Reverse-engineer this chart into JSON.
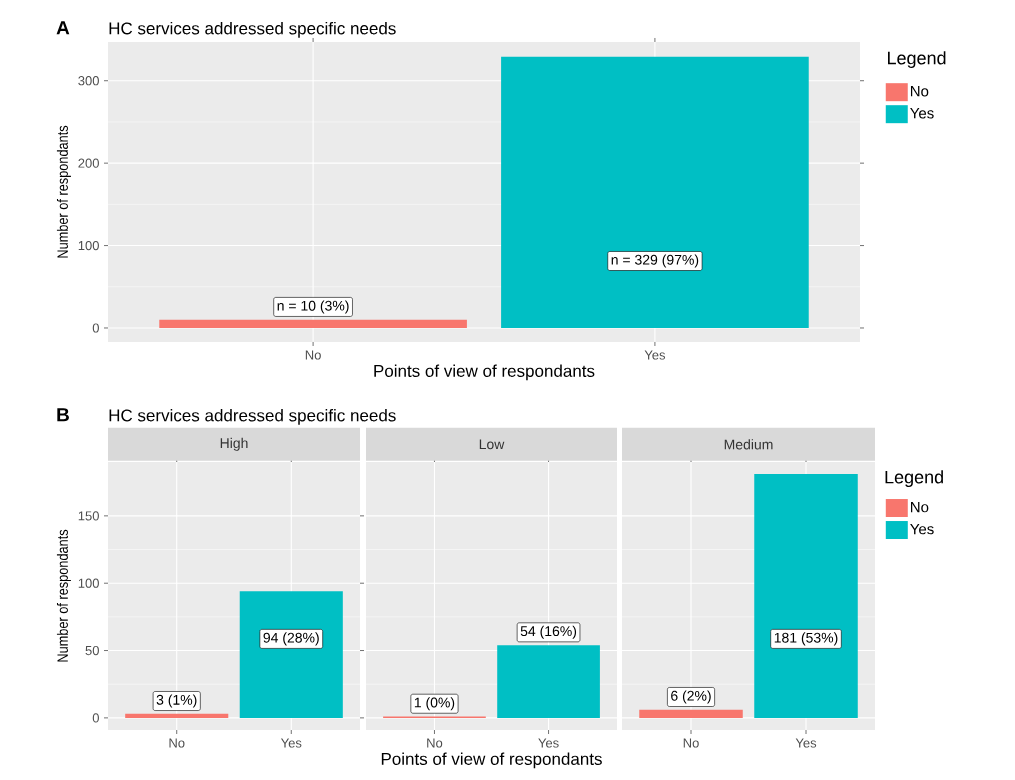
{
  "chart_data": [
    {
      "type": "bar",
      "title": "HC services addressed specific needs",
      "annotations": [
        "A"
      ],
      "xlabel": "Points of view of respondants",
      "ylabel": "Number of respondants",
      "legend_title": "Legend",
      "legend": "right",
      "categories": [
        "No",
        "Yes"
      ],
      "series": [
        {
          "name": "No",
          "color": "#f8766d",
          "values": [
            10,
            null
          ],
          "value_labels": [
            "n = 10 (3%)",
            null
          ]
        },
        {
          "name": "Yes",
          "color": "#00bfc4",
          "values": [
            null,
            329
          ],
          "value_labels": [
            null,
            "n = 329 (97%)"
          ]
        }
      ],
      "ylim": [
        -17,
        347
      ],
      "yticks": [
        0,
        100,
        200,
        300
      ],
      "grid": true
    },
    {
      "type": "bar",
      "title": "HC services addressed specific needs",
      "subtitle": "High",
      "annotations": [
        "B"
      ],
      "ylabel": "Number of respondants",
      "categories": [
        "No",
        "Yes"
      ],
      "series": [
        {
          "color": "#f8766d",
          "values": [
            3,
            null
          ],
          "value_labels": [
            "3 (1%)",
            null
          ]
        },
        {
          "color": "#00bfc4",
          "values": [
            null,
            94
          ],
          "value_labels": [
            null,
            "94 (28%)"
          ]
        }
      ],
      "ylim": [
        -9,
        190
      ],
      "yticks": [
        0,
        50,
        100,
        150
      ],
      "grid": true
    },
    {
      "type": "bar",
      "subtitle": "Low",
      "xlabel": "Points of view of respondants",
      "categories": [
        "No",
        "Yes"
      ],
      "series": [
        {
          "color": "#f8766d",
          "values": [
            1,
            null
          ],
          "value_labels": [
            "1 (0%)",
            null
          ]
        },
        {
          "color": "#00bfc4",
          "values": [
            null,
            54
          ],
          "value_labels": [
            null,
            "54 (16%)"
          ]
        }
      ],
      "ylim": [
        -9,
        190
      ],
      "yticks": [
        0,
        50,
        100,
        150
      ],
      "grid": true,
      "tick_labels": "x"
    },
    {
      "type": "bar",
      "subtitle": "Medium",
      "legend_title": "Legend",
      "legend": "right",
      "categories": [
        "No",
        "Yes"
      ],
      "series": [
        {
          "name": "No",
          "color": "#f8766d",
          "values": [
            6,
            null
          ],
          "value_labels": [
            "6 (2%)",
            null
          ]
        },
        {
          "name": "Yes",
          "color": "#00bfc4",
          "values": [
            null,
            181
          ],
          "value_labels": [
            null,
            "181 (53%)"
          ]
        }
      ],
      "ylim": [
        -9,
        190
      ],
      "yticks": [
        0,
        50,
        100,
        150
      ],
      "grid": true,
      "tick_labels": "x"
    }
  ]
}
